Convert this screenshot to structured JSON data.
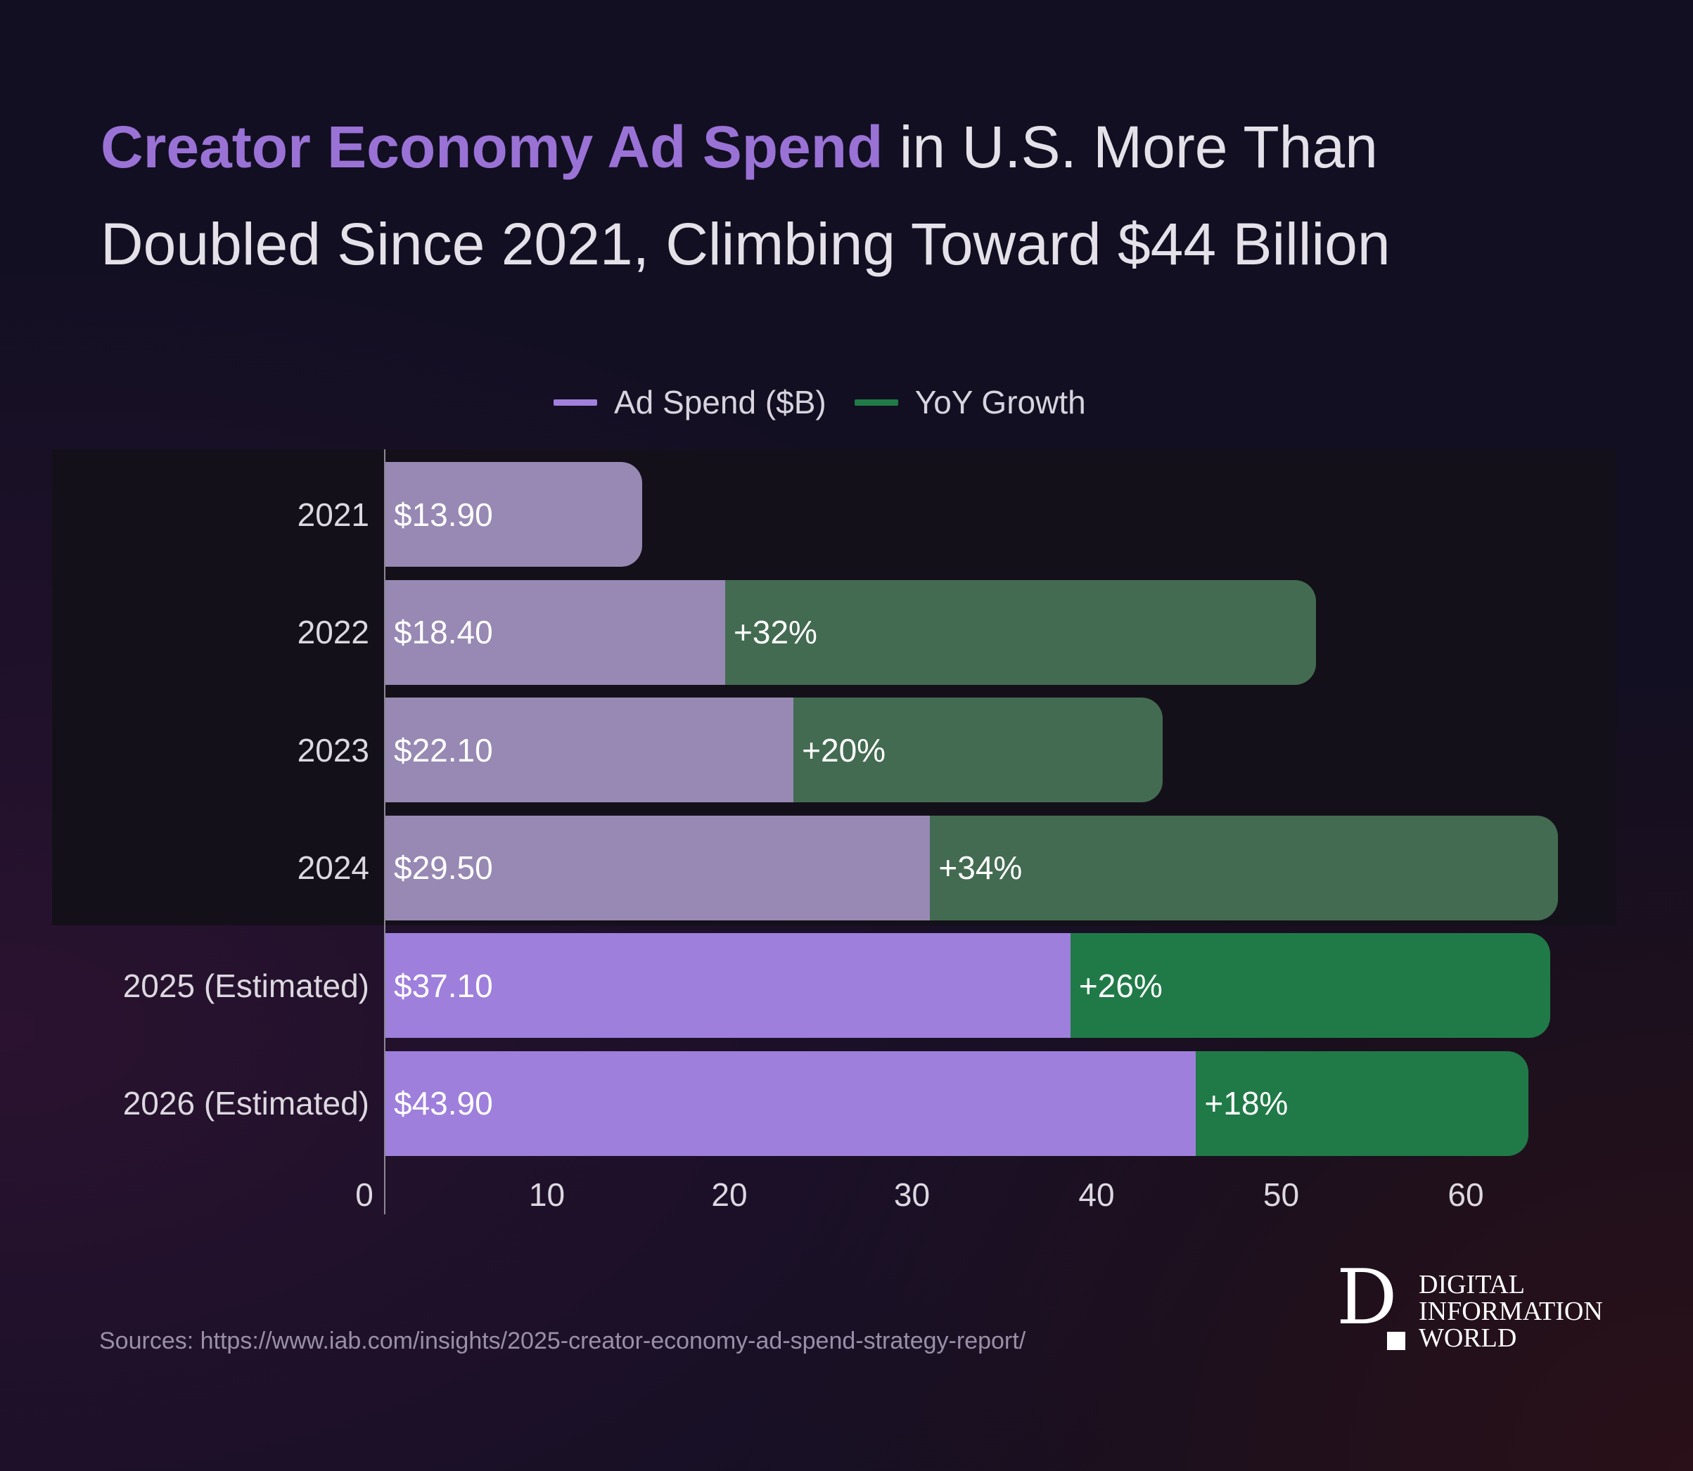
{
  "title": {
    "highlight": "Creator Economy Ad Spend",
    "line1_rest": " in U.S. More Than",
    "line2": "Doubled Since 2021, Climbing Toward $44 Billion"
  },
  "source": "Sources: https://www.iab.com/insights/2025-creator-economy-ad-spend-strategy-report/",
  "logo": {
    "letter": "D",
    "lines": [
      "DIGITAL",
      "INFORMATION",
      "WORLD"
    ]
  },
  "chart_data": {
    "type": "bar",
    "orientation": "horizontal",
    "stacked": true,
    "categories": [
      "2021",
      "2022",
      "2023",
      "2024",
      "2025 (Estimated)",
      "2026 (Estimated)"
    ],
    "series": [
      {
        "name": "Ad Spend ($B)",
        "values": [
          13.9,
          18.4,
          22.1,
          29.5,
          37.1,
          43.9
        ],
        "labels": [
          "$13.90",
          "$18.40",
          "$22.10",
          "$29.50",
          "$37.10",
          "$43.90"
        ]
      },
      {
        "name": "YoY Growth",
        "values": [
          null,
          32,
          20,
          34,
          26,
          18
        ],
        "labels": [
          "",
          "+32%",
          "+20%",
          "+34%",
          "+26%",
          "+18%"
        ]
      }
    ],
    "xlim": [
      0,
      64
    ],
    "xticks": [
      0,
      10,
      20,
      30,
      40,
      50,
      60
    ],
    "highlighted_categories": [
      "2021",
      "2022",
      "2023",
      "2024"
    ],
    "legend_position": "top",
    "grid": false,
    "colors": {
      "spend_actual": "#9789b3",
      "growth_actual": "#436b51",
      "spend_estimated": "#9e7fdc",
      "growth_estimated": "#207a47",
      "title_highlight": "#9a72d6"
    }
  }
}
